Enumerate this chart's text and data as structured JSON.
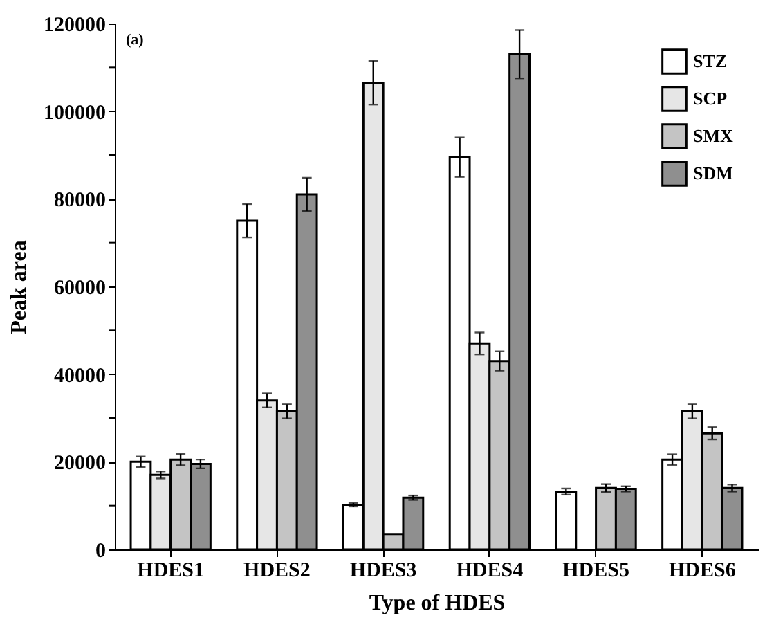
{
  "chart_data": {
    "type": "bar",
    "categories": [
      "HDES1",
      "HDES2",
      "HDES3",
      "HDES4",
      "HDES5",
      "HDES6"
    ],
    "xlabel": "Type of HDES",
    "ylabel": "Peak area",
    "annotations": [
      "(a)"
    ],
    "series": [
      {
        "name": "STZ",
        "color": "#ffffff",
        "values": [
          20000,
          75000,
          10200,
          89500,
          13200,
          20500
        ],
        "errors": [
          1200,
          3800,
          400,
          4500,
          700,
          1200
        ]
      },
      {
        "name": "SCP",
        "color": "#e6e6e6",
        "values": [
          17000,
          34000,
          106500,
          47000,
          null,
          31500
        ],
        "errors": [
          800,
          1600,
          5000,
          2500,
          null,
          1600
        ]
      },
      {
        "name": "SMX",
        "color": "#c4c4c4",
        "values": [
          20500,
          31500,
          3500,
          43000,
          14000,
          26500
        ],
        "errors": [
          1300,
          1600,
          null,
          2200,
          900,
          1400
        ]
      },
      {
        "name": "SDM",
        "color": "#8f8f8f",
        "values": [
          19500,
          81000,
          11800,
          113000,
          13800,
          14000
        ],
        "errors": [
          1000,
          3800,
          500,
          5500,
          600,
          800
        ]
      }
    ],
    "ylim": [
      0,
      120000
    ],
    "yticks": [
      0,
      {
        "value": 10000,
        "label": null
      },
      20000,
      {
        "value": 30000,
        "label": null
      },
      40000,
      {
        "value": 50000,
        "label": null
      },
      60000,
      {
        "value": 70000,
        "label": null
      },
      80000,
      {
        "value": 90000,
        "label": null
      },
      100000,
      {
        "value": 110000,
        "label": null
      },
      120000
    ],
    "grid": false,
    "legend": "top right"
  }
}
